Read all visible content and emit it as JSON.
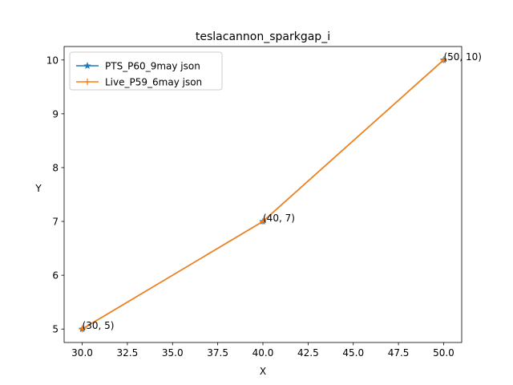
{
  "chart_data": {
    "type": "line",
    "title": "teslacannon_sparkgap_i",
    "xlabel": "X",
    "ylabel": "Y",
    "xlim": [
      29,
      51
    ],
    "ylim": [
      4.75,
      10.25
    ],
    "xticks": [
      30,
      32.5,
      35,
      37.5,
      40,
      42.5,
      45,
      47.5,
      50
    ],
    "xtick_labels": [
      "30.0",
      "32.5",
      "35.0",
      "37.5",
      "40.0",
      "42.5",
      "45.0",
      "47.5",
      "50.0"
    ],
    "yticks": [
      5,
      6,
      7,
      8,
      9,
      10
    ],
    "ytick_labels": [
      "5",
      "6",
      "7",
      "8",
      "9",
      "10"
    ],
    "grid": false,
    "legend_position": "upper-left",
    "series": [
      {
        "name": "PTS_P60_9may json",
        "x": [
          30,
          40,
          50
        ],
        "y": [
          5,
          7,
          10
        ],
        "color": "#1f77b4",
        "marker": "star"
      },
      {
        "name": "Live_P59_6may json",
        "x": [
          30,
          40,
          50
        ],
        "y": [
          5,
          7,
          10
        ],
        "color": "#ff7f0e",
        "marker": "plus"
      }
    ],
    "annotations": [
      {
        "text": "(30, 5)",
        "x": 30,
        "y": 5
      },
      {
        "text": "(40, 7)",
        "x": 40,
        "y": 7
      },
      {
        "text": "(50, 10)",
        "x": 50,
        "y": 10
      }
    ]
  }
}
